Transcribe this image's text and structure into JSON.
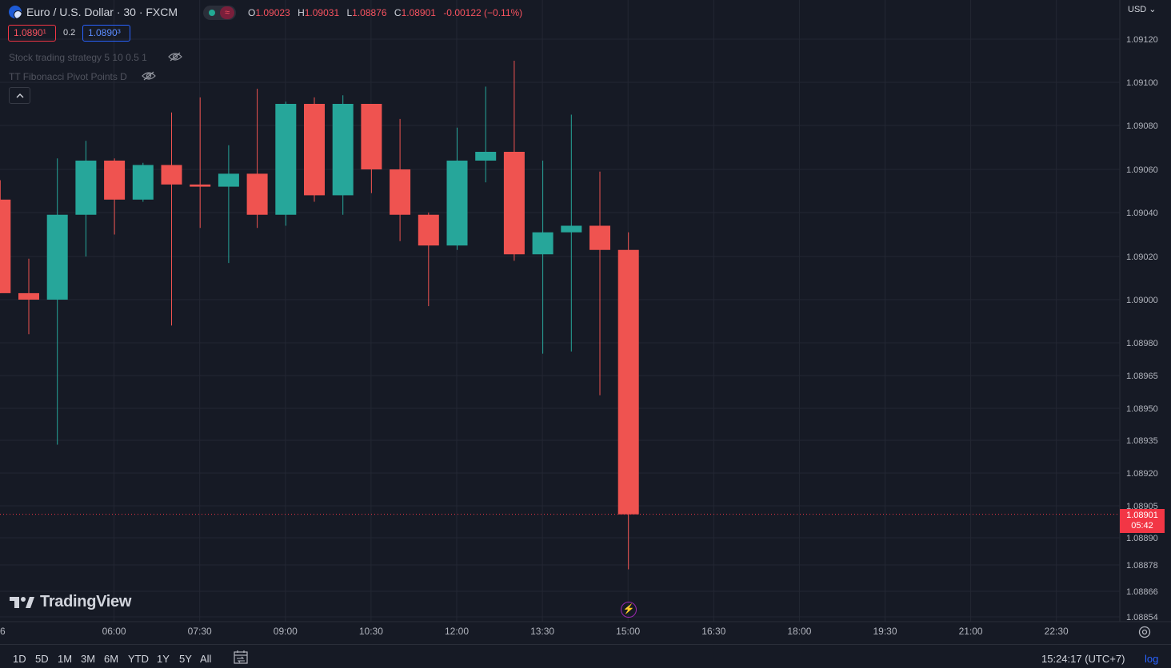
{
  "header": {
    "symbol": "Euro / U.S. Dollar · 30 · FXCM",
    "ohlc": {
      "o_label": "O",
      "o": "1.09023",
      "h_label": "H",
      "h": "1.09031",
      "l_label": "L",
      "l": "1.08876",
      "c_label": "C",
      "c": "1.08901",
      "change": "-0.00122 (−0.11%)"
    },
    "sell_price": "1.0890¹",
    "spread": "0.2",
    "buy_price": "1.0890³",
    "currency": "USD"
  },
  "indicators": [
    {
      "label": "Stock trading strategy 5 10 0.5 1"
    },
    {
      "label": "TT Fibonacci Pivot Points D"
    }
  ],
  "last_price": {
    "price": "1.08901",
    "countdown": "05:42"
  },
  "logo_text": "TradingView",
  "bottom_bar": {
    "ranges": [
      "1D",
      "5D",
      "1M",
      "3M",
      "6M",
      "YTD",
      "1Y",
      "5Y",
      "All"
    ],
    "time": "15:24:17 (UTC+7)",
    "scale": "log"
  },
  "colors": {
    "up": "#26a69a",
    "down": "#ef5350",
    "background": "#161a25",
    "grid": "#232733",
    "last_price": "#f23645"
  },
  "chart_data": {
    "type": "candlestick",
    "symbol": "Euro / U.S. Dollar",
    "interval": "30",
    "y_ticks": [
      1.0912,
      1.091,
      1.0908,
      1.0906,
      1.0904,
      1.0902,
      1.09,
      1.0898,
      1.08965,
      1.0895,
      1.08935,
      1.0892,
      1.08905,
      1.0889,
      1.08878,
      1.08866,
      1.08854
    ],
    "y_tick_labels": [
      "1.09120",
      "1.09100",
      "1.09080",
      "1.09060",
      "1.09040",
      "1.09020",
      "1.09000",
      "1.08980",
      "1.08965",
      "1.08950",
      "1.08935",
      "1.08920",
      "1.08905",
      "1.08890",
      "1.08878",
      "1.08866",
      "1.08854"
    ],
    "x_tick_labels": [
      "6",
      "06:00",
      "07:30",
      "09:00",
      "10:30",
      "12:00",
      "13:30",
      "15:00",
      "16:30",
      "18:00",
      "19:30",
      "21:00",
      "22:30"
    ],
    "last_price": 1.08901,
    "candles": [
      {
        "t": "04:30",
        "o": 1.09046,
        "h": 1.09055,
        "l": 1.09003,
        "c": 1.09003
      },
      {
        "t": "05:00",
        "o": 1.09003,
        "h": 1.09019,
        "l": 1.08984,
        "c": 1.09
      },
      {
        "t": "05:30",
        "o": 1.09,
        "h": 1.09065,
        "l": 1.08933,
        "c": 1.09039
      },
      {
        "t": "06:00",
        "o": 1.09039,
        "h": 1.09073,
        "l": 1.0902,
        "c": 1.09064
      },
      {
        "t": "06:30",
        "o": 1.09064,
        "h": 1.09065,
        "l": 1.0903,
        "c": 1.09046
      },
      {
        "t": "07:00",
        "o": 1.09046,
        "h": 1.09063,
        "l": 1.09045,
        "c": 1.09062
      },
      {
        "t": "07:30",
        "o": 1.09062,
        "h": 1.09086,
        "l": 1.08988,
        "c": 1.09053
      },
      {
        "t": "08:00",
        "o": 1.09053,
        "h": 1.09093,
        "l": 1.09033,
        "c": 1.09052
      },
      {
        "t": "08:30",
        "o": 1.09052,
        "h": 1.09071,
        "l": 1.09017,
        "c": 1.09058
      },
      {
        "t": "09:00",
        "o": 1.09058,
        "h": 1.09097,
        "l": 1.09033,
        "c": 1.09039
      },
      {
        "t": "09:30",
        "o": 1.09039,
        "h": 1.09091,
        "l": 1.09034,
        "c": 1.0909
      },
      {
        "t": "10:00",
        "o": 1.0909,
        "h": 1.09093,
        "l": 1.09045,
        "c": 1.09048
      },
      {
        "t": "10:30",
        "o": 1.09048,
        "h": 1.09094,
        "l": 1.09039,
        "c": 1.0909
      },
      {
        "t": "11:00",
        "o": 1.0909,
        "h": 1.0909,
        "l": 1.09049,
        "c": 1.0906
      },
      {
        "t": "11:30",
        "o": 1.0906,
        "h": 1.09083,
        "l": 1.09027,
        "c": 1.09039
      },
      {
        "t": "12:00",
        "o": 1.09039,
        "h": 1.0904,
        "l": 1.08997,
        "c": 1.09025
      },
      {
        "t": "12:30",
        "o": 1.09025,
        "h": 1.09079,
        "l": 1.09023,
        "c": 1.09064
      },
      {
        "t": "13:00",
        "o": 1.09064,
        "h": 1.09098,
        "l": 1.09054,
        "c": 1.09068
      },
      {
        "t": "13:30",
        "o": 1.09068,
        "h": 1.0911,
        "l": 1.09018,
        "c": 1.09021
      },
      {
        "t": "14:00",
        "o": 1.09021,
        "h": 1.09064,
        "l": 1.08975,
        "c": 1.09031
      },
      {
        "t": "14:30",
        "o": 1.09031,
        "h": 1.09085,
        "l": 1.08976,
        "c": 1.09034
      },
      {
        "t": "15:00",
        "o": 1.09034,
        "h": 1.09059,
        "l": 1.08956,
        "c": 1.09023
      },
      {
        "t": "15:30",
        "o": 1.09023,
        "h": 1.09031,
        "l": 1.08876,
        "c": 1.08901
      }
    ]
  }
}
